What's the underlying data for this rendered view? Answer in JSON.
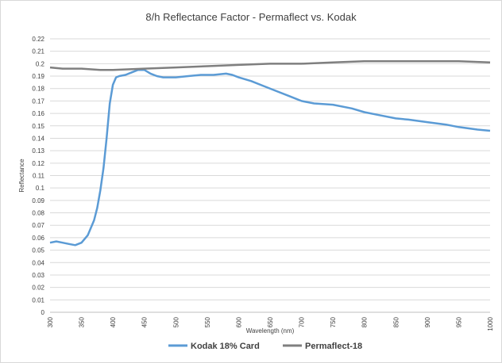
{
  "chart_data": {
    "type": "line",
    "title": "8/h Reflectance Factor - Permaflect vs. Kodak",
    "xlabel": "Wavelength (nm)",
    "ylabel": "Reflectance",
    "xlim": [
      300,
      1000
    ],
    "ylim": [
      0,
      0.22
    ],
    "x_ticks": [
      "300",
      "350",
      "400",
      "450",
      "500",
      "550",
      "600",
      "650",
      "700",
      "750",
      "800",
      "850",
      "900",
      "950",
      "1000"
    ],
    "y_ticks": [
      "0",
      "0.01",
      "0.02",
      "0.03",
      "0.04",
      "0.05",
      "0.06",
      "0.07",
      "0.08",
      "0.09",
      "0.1",
      "0.11",
      "0.12",
      "0.13",
      "0.14",
      "0.15",
      "0.16",
      "0.17",
      "0.18",
      "0.19",
      "0.2",
      "0.21",
      "0.22"
    ],
    "grid": "horizontal",
    "legend_position": "bottom",
    "series": [
      {
        "name": "Kodak 18% Card",
        "color": "#5b9bd5",
        "x": [
          300,
          310,
          320,
          330,
          340,
          350,
          360,
          370,
          375,
          380,
          385,
          390,
          395,
          400,
          405,
          410,
          420,
          430,
          440,
          450,
          460,
          470,
          480,
          490,
          500,
          520,
          540,
          560,
          580,
          590,
          600,
          620,
          640,
          660,
          680,
          700,
          720,
          750,
          780,
          800,
          820,
          850,
          870,
          900,
          930,
          950,
          980,
          1000
        ],
        "y": [
          0.056,
          0.057,
          0.056,
          0.055,
          0.054,
          0.056,
          0.062,
          0.074,
          0.084,
          0.098,
          0.116,
          0.14,
          0.168,
          0.183,
          0.189,
          0.19,
          0.191,
          0.193,
          0.195,
          0.195,
          0.192,
          0.19,
          0.189,
          0.189,
          0.189,
          0.19,
          0.191,
          0.191,
          0.192,
          0.191,
          0.189,
          0.186,
          0.182,
          0.178,
          0.174,
          0.17,
          0.168,
          0.167,
          0.164,
          0.161,
          0.159,
          0.156,
          0.155,
          0.153,
          0.151,
          0.149,
          0.147,
          0.146
        ]
      },
      {
        "name": "Permaflect-18",
        "color": "#7f7f7f",
        "x": [
          300,
          320,
          350,
          380,
          400,
          450,
          500,
          550,
          600,
          650,
          700,
          750,
          800,
          850,
          900,
          950,
          1000
        ],
        "y": [
          0.197,
          0.196,
          0.196,
          0.195,
          0.195,
          0.196,
          0.197,
          0.198,
          0.199,
          0.2,
          0.2,
          0.201,
          0.202,
          0.202,
          0.202,
          0.202,
          0.201
        ]
      }
    ]
  }
}
